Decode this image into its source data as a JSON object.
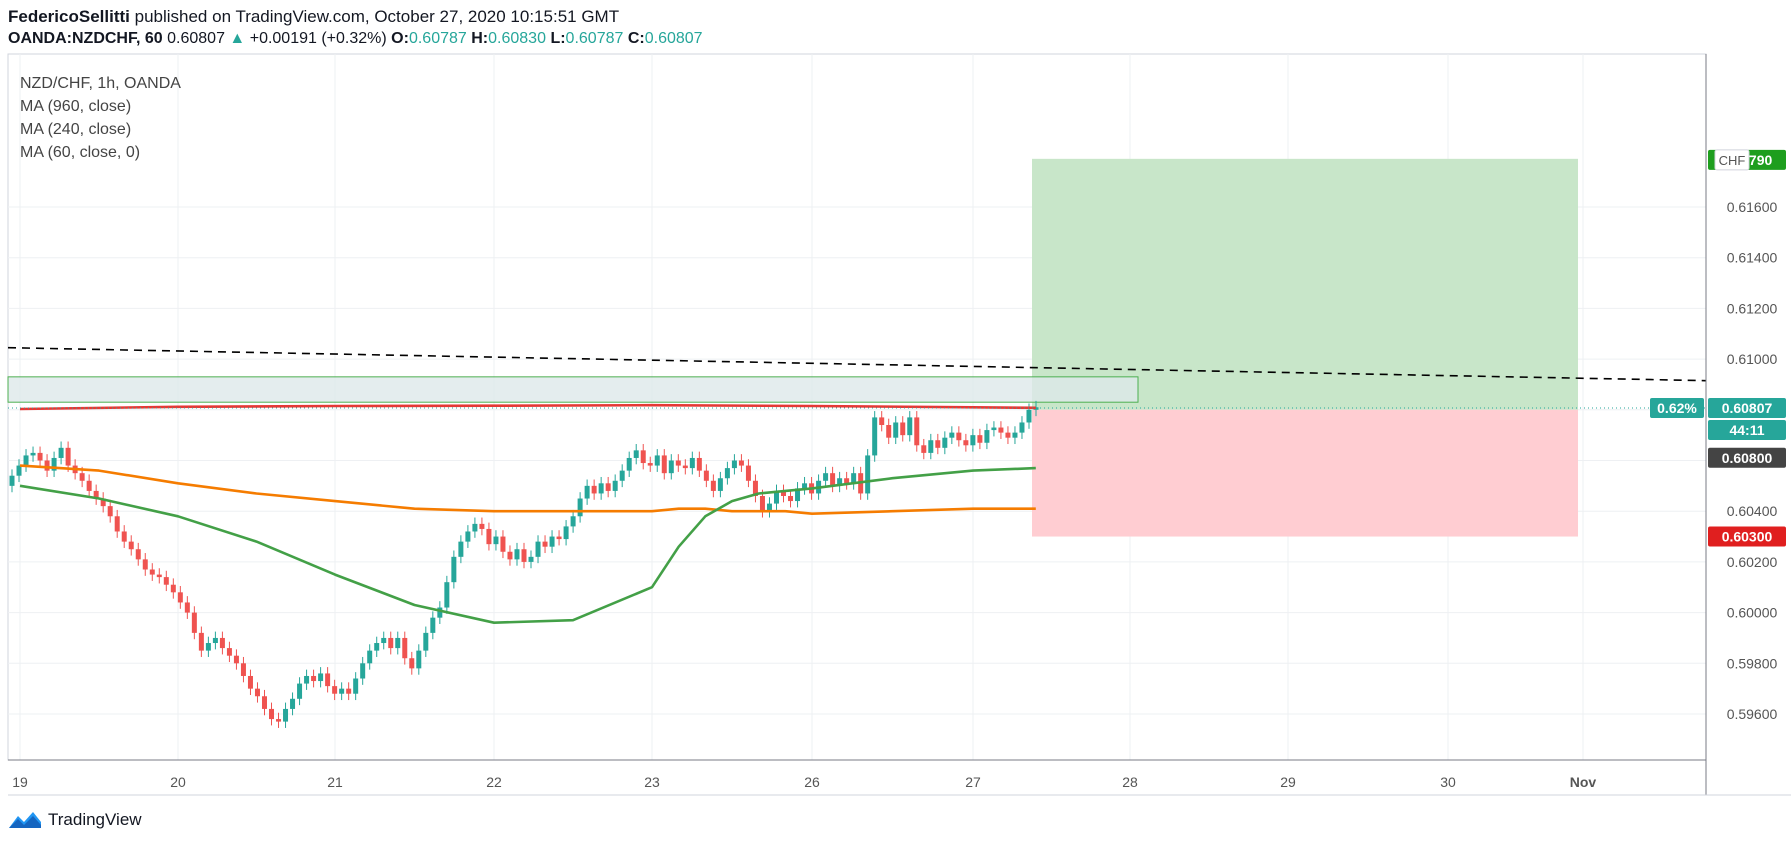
{
  "header": {
    "author": "FedericoSellitti",
    "published": "published on TradingView.com, October 27, 2020 10:15:51 GMT",
    "symbol": "OANDA:NZDCHF, 60",
    "price": "0.60807",
    "change_arrow": "▲",
    "change": "+0.00191 (+0.32%)",
    "o_label": "O:",
    "o": "0.60787",
    "h_label": "H:",
    "h": "0.60830",
    "l_label": "L:",
    "l": "0.60787",
    "c_label": "C:",
    "c": "0.60807"
  },
  "indicators": {
    "title": "NZD/CHF, 1h, OANDA",
    "ma1": "MA (960, close)",
    "ma2": "MA (240, close)",
    "ma3": "MA (60, close, 0)"
  },
  "footer": {
    "logo_icon": "tradingview-logo-icon",
    "brand": "TradingView"
  },
  "colors": {
    "up": "#26a69a",
    "down": "#ef5350",
    "ma960": "#e53935",
    "ma240": "#f57c00",
    "ma60": "#43a047",
    "profit_zone": "#c8e6c9",
    "loss_zone": "#ffcdd2",
    "resistance_zone": "#dde9ea",
    "trendline": "#000000"
  },
  "chart_data": {
    "type": "candlestick",
    "symbol": "NZD/CHF",
    "timeframe": "1h",
    "y_axis_ticks": [
      "0.61600",
      "0.61400",
      "0.61200",
      "0.61000",
      "0.60800",
      "0.60600",
      "0.60400",
      "0.60200",
      "0.60000",
      "0.59800",
      "0.59600"
    ],
    "ylim": [
      0.5948,
      0.618
    ],
    "x_axis_ticks": [
      "19",
      "20",
      "21",
      "22",
      "23",
      "26",
      "27",
      "28",
      "29",
      "30",
      "Nov"
    ],
    "price_labels": {
      "current": "0.60807",
      "current_pct": "0.62%",
      "countdown": "44:11",
      "entry": "0.60800",
      "stop": "0.60300",
      "target": "0.61790",
      "currency": "CHF"
    },
    "candles_close": [
      0.6054,
      0.6058,
      0.6062,
      0.6063,
      0.606,
      0.6056,
      0.6061,
      0.6065,
      0.6058,
      0.6055,
      0.6052,
      0.6048,
      0.6045,
      0.6042,
      0.6038,
      0.6032,
      0.6028,
      0.6025,
      0.6021,
      0.6017,
      0.6015,
      0.6014,
      0.6011,
      0.6008,
      0.6004,
      0.6,
      0.5992,
      0.5985,
      0.5988,
      0.599,
      0.5986,
      0.5983,
      0.598,
      0.5975,
      0.597,
      0.5967,
      0.5962,
      0.5958,
      0.5957,
      0.5962,
      0.5966,
      0.5972,
      0.5975,
      0.5973,
      0.5976,
      0.5971,
      0.5968,
      0.597,
      0.5968,
      0.5974,
      0.598,
      0.5985,
      0.5988,
      0.599,
      0.5986,
      0.599,
      0.5982,
      0.5978,
      0.5985,
      0.5992,
      0.5998,
      0.6002,
      0.6012,
      0.6022,
      0.6028,
      0.6032,
      0.6035,
      0.6033,
      0.6027,
      0.603,
      0.6024,
      0.6021,
      0.6025,
      0.602,
      0.6022,
      0.6028,
      0.6026,
      0.603,
      0.6029,
      0.6034,
      0.6038,
      0.6045,
      0.605,
      0.6047,
      0.6051,
      0.6048,
      0.6052,
      0.6056,
      0.6061,
      0.6064,
      0.6059,
      0.6058,
      0.6062,
      0.6055,
      0.606,
      0.6058,
      0.6057,
      0.6061,
      0.6056,
      0.6052,
      0.6048,
      0.6053,
      0.6057,
      0.606,
      0.6058,
      0.6052,
      0.6046,
      0.604,
      0.6043,
      0.6048,
      0.6046,
      0.6044,
      0.6049,
      0.6051,
      0.6047,
      0.6052,
      0.6055,
      0.605,
      0.6053,
      0.6051,
      0.6055,
      0.6047,
      0.6062,
      0.6077,
      0.6074,
      0.6069,
      0.6075,
      0.607,
      0.6077,
      0.6066,
      0.6063,
      0.6068,
      0.6065,
      0.6069,
      0.6071,
      0.6068,
      0.6066,
      0.607,
      0.6067,
      0.6072,
      0.6073,
      0.6071,
      0.6069,
      0.6071,
      0.6075,
      0.608,
      0.6081
    ],
    "series": [
      {
        "name": "MA (960, close)",
        "color": "#e53935",
        "x": [
          19,
          20,
          21,
          22,
          23,
          26,
          27,
          27.4
        ],
        "y": [
          0.60803,
          0.60812,
          0.60815,
          0.60816,
          0.60818,
          0.60815,
          0.6081,
          0.60808
        ]
      },
      {
        "name": "MA (240, close)",
        "color": "#f57c00",
        "x": [
          19,
          19.5,
          20,
          20.5,
          21,
          21.5,
          22,
          22.5,
          23,
          23.5,
          24,
          24.5,
          25,
          25.5,
          26,
          26.5,
          27,
          27.4
        ],
        "y": [
          0.6058,
          0.6056,
          0.6051,
          0.6047,
          0.6044,
          0.6041,
          0.604,
          0.604,
          0.604,
          0.6041,
          0.6041,
          0.604,
          0.604,
          0.604,
          0.6039,
          0.604,
          0.6041,
          0.6041
        ]
      },
      {
        "name": "MA (60, close, 0)",
        "color": "#43a047",
        "x": [
          19,
          19.5,
          20,
          20.5,
          21,
          21.5,
          22,
          22.5,
          23,
          23.5,
          24,
          24.5,
          25,
          25.5,
          26,
          26.5,
          27,
          27.4
        ],
        "y": [
          0.605,
          0.6045,
          0.6038,
          0.6028,
          0.6015,
          0.6003,
          0.5996,
          0.5997,
          0.601,
          0.6026,
          0.6038,
          0.6044,
          0.6047,
          0.6048,
          0.6049,
          0.6053,
          0.6056,
          0.6057
        ]
      }
    ],
    "trendline": {
      "style": "dashed",
      "start": [
        18.9,
        0.61045
      ],
      "end": [
        31.7,
        0.60915
      ]
    },
    "resistance_zone": {
      "y": [
        0.6083,
        0.6093
      ]
    },
    "long_position": {
      "entry": 0.608,
      "target": 0.6179,
      "stop": 0.603
    },
    "grid": true,
    "legend": "top-left"
  }
}
